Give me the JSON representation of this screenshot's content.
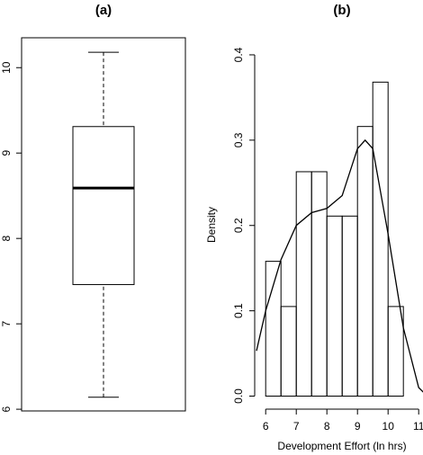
{
  "chart_data": [
    {
      "type": "box",
      "title": "(a)",
      "min": 6.14,
      "q1": 7.46,
      "median": 8.59,
      "q3": 9.31,
      "max": 10.18,
      "ylim": [
        5.98,
        10.35
      ],
      "yticks": [
        6,
        7,
        8,
        9,
        10
      ],
      "color": "#000000"
    },
    {
      "type": "histogram",
      "title": "(b)",
      "xlabel": "Development Effort (ln hrs)",
      "ylabel": "Density",
      "bins": [
        6.0,
        6.5,
        7.0,
        7.5,
        8.0,
        8.5,
        9.0,
        9.5,
        10.0,
        10.5
      ],
      "values": [
        0.158,
        0.105,
        0.263,
        0.263,
        0.211,
        0.211,
        0.316,
        0.368,
        0.105
      ],
      "curve": {
        "x": [
          5.7,
          6.0,
          6.5,
          7.0,
          7.5,
          8.0,
          8.5,
          9.0,
          9.25,
          9.5,
          10.0,
          10.5,
          11.0,
          11.2
        ],
        "y": [
          0.053,
          0.1,
          0.16,
          0.2,
          0.215,
          0.22,
          0.235,
          0.29,
          0.3,
          0.29,
          0.19,
          0.08,
          0.01,
          0.003
        ]
      },
      "xlim": [
        5.7,
        11.2
      ],
      "ylim": [
        -0.01,
        0.42
      ],
      "xticks": [
        6,
        7,
        8,
        9,
        10,
        11
      ],
      "yticks": [
        {
          "value": 0,
          "label": "0.0"
        },
        0.1,
        0.2,
        0.3,
        0.4
      ],
      "color": "#000000"
    }
  ]
}
